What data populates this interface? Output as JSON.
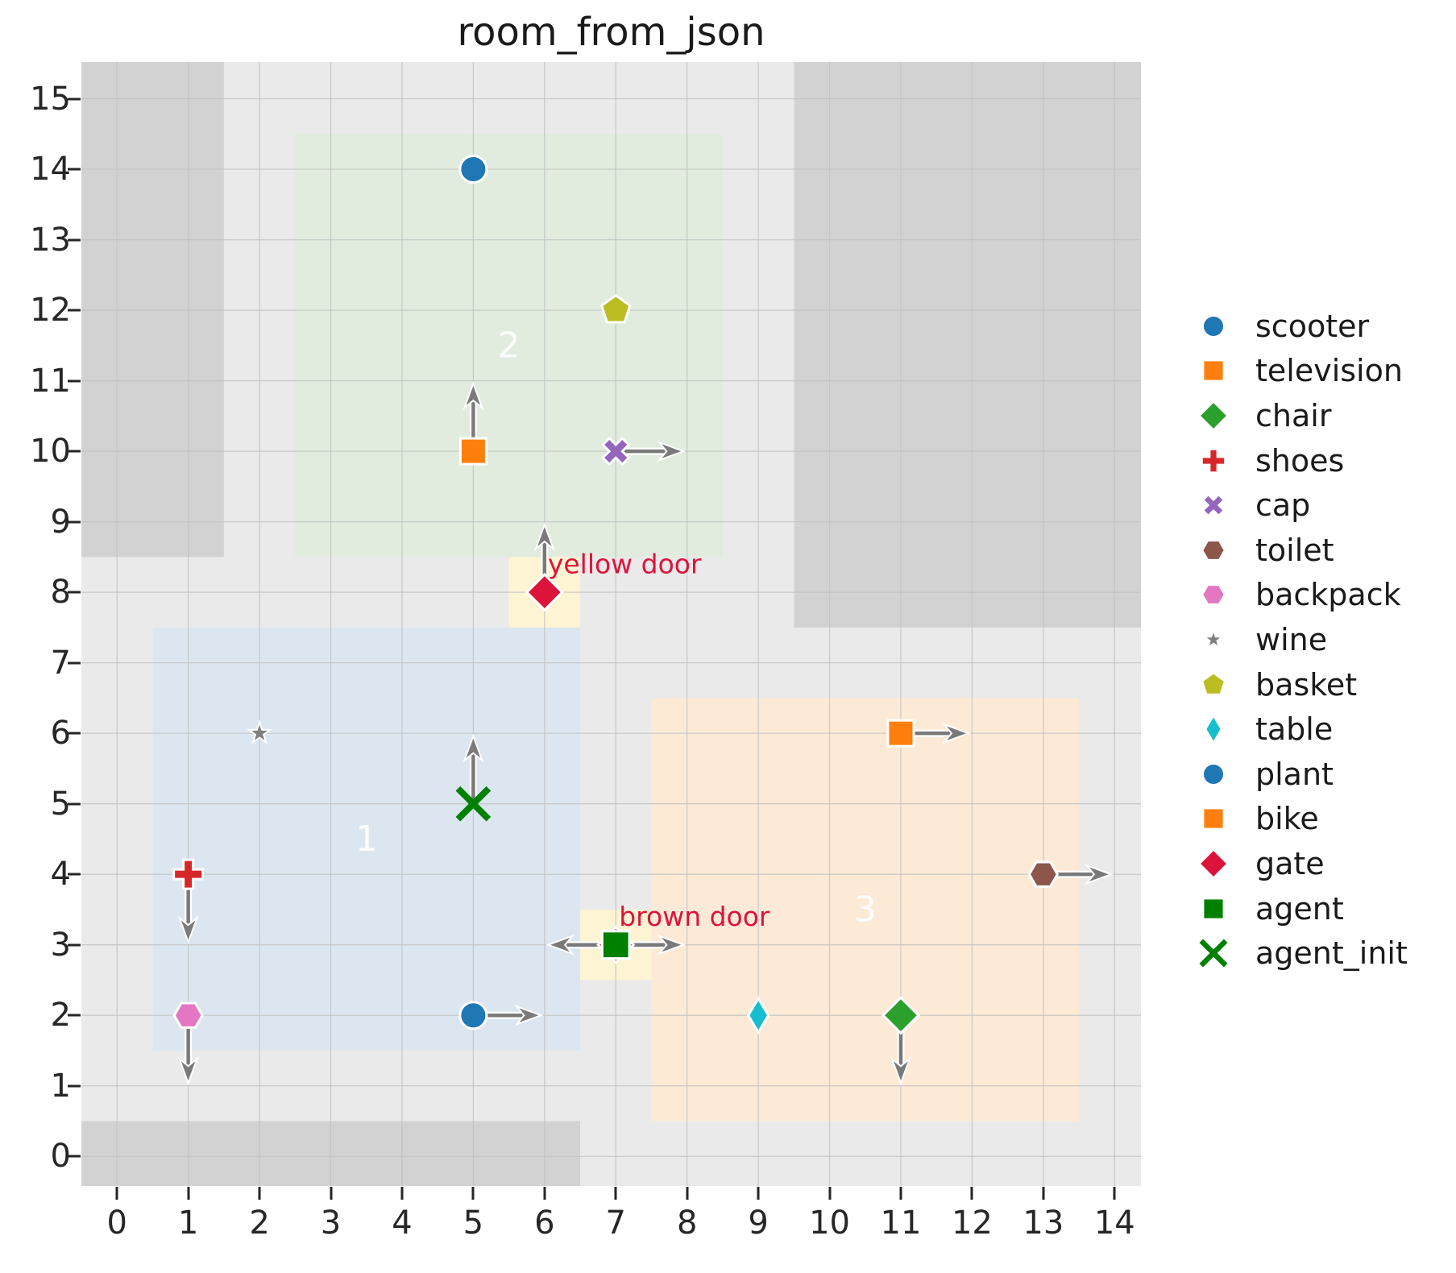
{
  "chart_data": {
    "type": "scatter",
    "title": "room_from_json",
    "xlabel": "",
    "ylabel": "",
    "xlim": [
      -0.5,
      14.37
    ],
    "ylim": [
      -0.42,
      15.52
    ],
    "grid": true,
    "legend_position": "right-outside",
    "x_ticks": [
      0,
      1,
      2,
      3,
      4,
      5,
      6,
      7,
      8,
      9,
      10,
      11,
      12,
      13,
      14
    ],
    "y_ticks": [
      0,
      1,
      2,
      3,
      4,
      5,
      6,
      7,
      8,
      9,
      10,
      11,
      12,
      13,
      14,
      15
    ],
    "rooms": [
      {
        "label": "1",
        "x": 0.5,
        "y": 1.5,
        "w": 6,
        "h": 6,
        "fill": "#dbe6f0",
        "label_x": 3.5,
        "label_y": 4.5
      },
      {
        "label": "2",
        "x": 2.5,
        "y": 8.5,
        "w": 6,
        "h": 6,
        "fill": "#e1ecdf",
        "label_x": 5.5,
        "label_y": 11.5
      },
      {
        "label": "3",
        "x": 7.5,
        "y": 0.5,
        "w": 6,
        "h": 6,
        "fill": "#fcead7",
        "label_x": 10.5,
        "label_y": 3.5
      }
    ],
    "obstacles": [
      {
        "x": -0.5,
        "y": 8.5,
        "w": 2.0,
        "h": 7.1
      },
      {
        "x": 9.5,
        "y": 7.5,
        "w": 4.95,
        "h": 8.1
      },
      {
        "x": -0.5,
        "y": -0.5,
        "w": 7.0,
        "h": 1.0
      }
    ],
    "doors": [
      {
        "name": "yellow door",
        "x": 6,
        "y": 8,
        "rect": {
          "x": 5.5,
          "y": 7.5,
          "w": 1,
          "h": 1
        }
      },
      {
        "name": "brown door",
        "x": 7,
        "y": 3,
        "rect": {
          "x": 6.5,
          "y": 2.5,
          "w": 1,
          "h": 1
        }
      }
    ],
    "objects": [
      {
        "name": "scooter",
        "x": 5,
        "y": 14,
        "marker": "circle",
        "color": "#1f77b4",
        "arrows": []
      },
      {
        "name": "television",
        "x": 5,
        "y": 10,
        "marker": "square",
        "color": "#ff7f0e",
        "arrows": [
          [
            0,
            1
          ]
        ]
      },
      {
        "name": "basket",
        "x": 7,
        "y": 12,
        "marker": "pentagon",
        "color": "#bcbd22",
        "arrows": []
      },
      {
        "name": "cap",
        "x": 7,
        "y": 10,
        "marker": "x",
        "color": "#9467bd",
        "arrows": [
          [
            1,
            0
          ]
        ]
      },
      {
        "name": "gate",
        "x": 6,
        "y": 8,
        "marker": "diamond",
        "color": "#dc143c",
        "arrows": [
          [
            0,
            1
          ]
        ]
      },
      {
        "name": "wine",
        "x": 2,
        "y": 6,
        "marker": "star",
        "color": "#7f7f7f",
        "arrows": [],
        "scale": 0.72
      },
      {
        "name": "agent_init",
        "x": 5,
        "y": 5,
        "marker": "cross",
        "color": "#008000",
        "arrows": [
          [
            0,
            1
          ]
        ]
      },
      {
        "name": "shoes",
        "x": 1,
        "y": 4,
        "marker": "plus",
        "color": "#d62728",
        "arrows": [
          [
            0,
            -1
          ]
        ]
      },
      {
        "name": "backpack",
        "x": 1,
        "y": 2,
        "marker": "hexagon",
        "color": "#e377c2",
        "arrows": [
          [
            0,
            -1
          ]
        ]
      },
      {
        "name": "plant",
        "x": 5,
        "y": 2,
        "marker": "circle",
        "color": "#1f77b4",
        "arrows": [
          [
            1,
            0
          ]
        ]
      },
      {
        "name": "table",
        "x": 9,
        "y": 2,
        "marker": "thin_diamond",
        "color": "#17becf",
        "arrows": []
      },
      {
        "name": "chair",
        "x": 11,
        "y": 2,
        "marker": "diamond",
        "color": "#2ca02c",
        "arrows": [
          [
            0,
            -1
          ]
        ]
      },
      {
        "name": "bike",
        "x": 11,
        "y": 6,
        "marker": "square",
        "color": "#ff7f0e",
        "arrows": [
          [
            1,
            0
          ]
        ]
      },
      {
        "name": "toilet",
        "x": 13,
        "y": 4,
        "marker": "hexagon",
        "color": "#8c564b",
        "arrows": [
          [
            1,
            0
          ]
        ]
      },
      {
        "name": "agent",
        "x": 7,
        "y": 3,
        "marker": "square",
        "color": "#008000",
        "arrows": [
          [
            1,
            0
          ],
          [
            -1,
            0
          ]
        ],
        "scale": 1.06
      }
    ],
    "legend": [
      {
        "label": "scooter",
        "marker": "circle",
        "color": "#1f77b4"
      },
      {
        "label": "television",
        "marker": "square",
        "color": "#ff7f0e"
      },
      {
        "label": "chair",
        "marker": "diamond",
        "color": "#2ca02c"
      },
      {
        "label": "shoes",
        "marker": "plus",
        "color": "#d62728"
      },
      {
        "label": "cap",
        "marker": "x",
        "color": "#9467bd"
      },
      {
        "label": "toilet",
        "marker": "hexagon",
        "color": "#8c564b"
      },
      {
        "label": "backpack",
        "marker": "hexagon",
        "color": "#e377c2"
      },
      {
        "label": "wine",
        "marker": "star",
        "color": "#7f7f7f",
        "scale": 0.75
      },
      {
        "label": "basket",
        "marker": "pentagon",
        "color": "#bcbd22"
      },
      {
        "label": "table",
        "marker": "thin_diamond",
        "color": "#17becf"
      },
      {
        "label": "plant",
        "marker": "circle",
        "color": "#1f77b4"
      },
      {
        "label": "bike",
        "marker": "square",
        "color": "#ff7f0e"
      },
      {
        "label": "gate",
        "marker": "diamond",
        "color": "#dc143c"
      },
      {
        "label": "agent",
        "marker": "square",
        "color": "#008000"
      },
      {
        "label": "agent_init",
        "marker": "cross",
        "color": "#008000"
      }
    ],
    "colors": {
      "plot_bg": "#eaeaea",
      "obstacle": "#d2d2d2",
      "grid": "#c3c3c3",
      "door_fill": "#fdf4d3",
      "door_text": "#dc143c",
      "arrow": "#7a7a7a",
      "room_label": "#ffffff",
      "tick": "#262626"
    }
  }
}
